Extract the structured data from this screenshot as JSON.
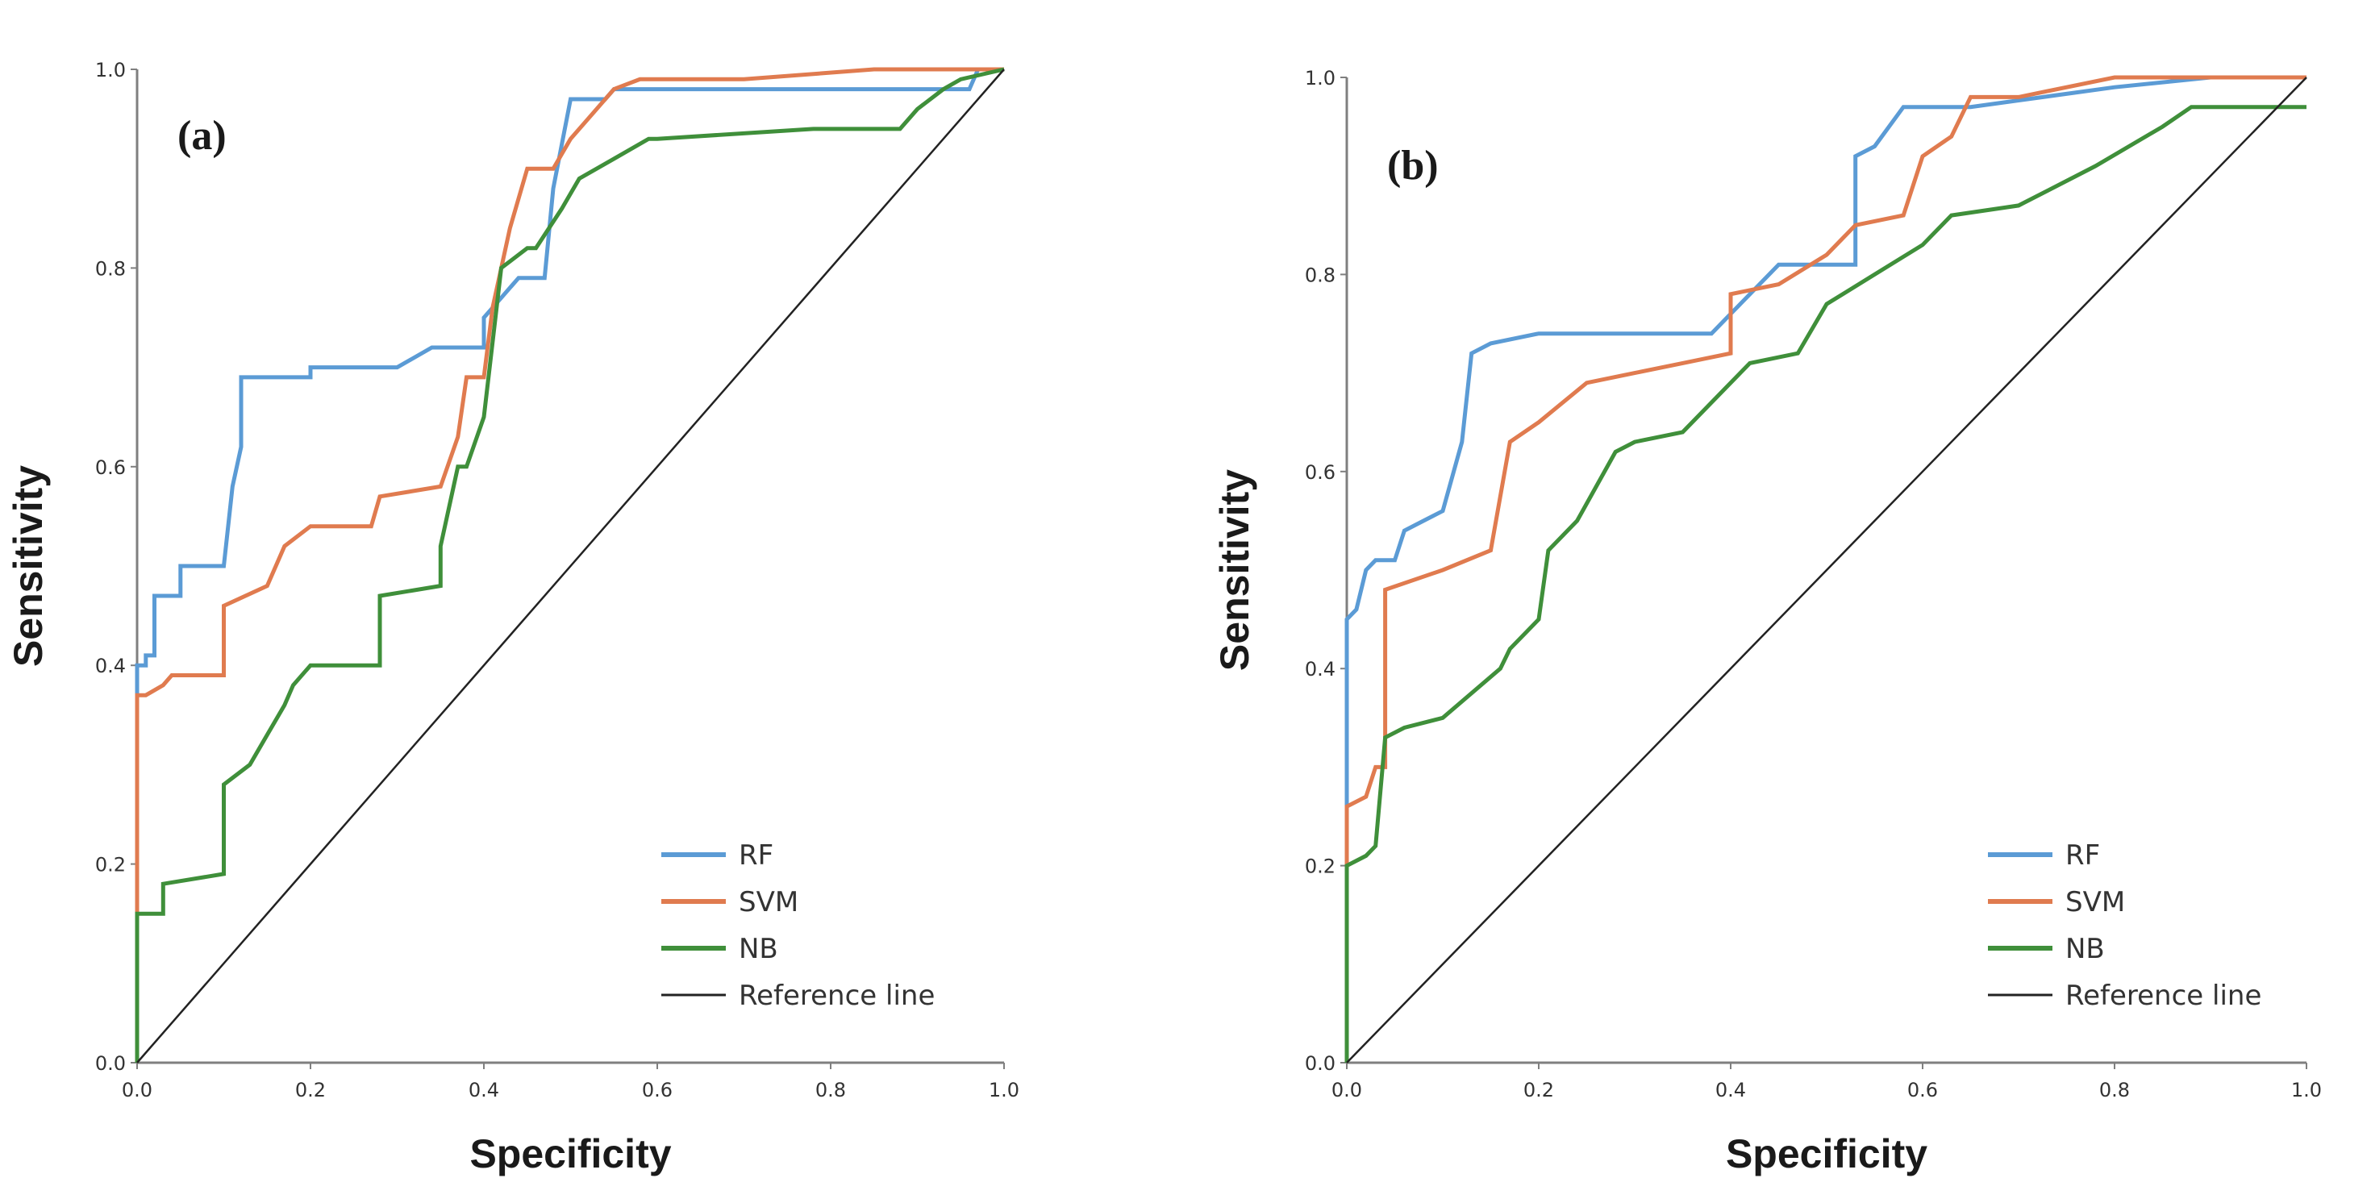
{
  "colors": {
    "RF": "#5b9bd5",
    "SVM": "#e07b4f",
    "NB": "#3f8f3a",
    "Reference line": "#222222"
  },
  "chart_data": [
    {
      "type": "line",
      "panel_label": "(a)",
      "xlabel": "Specificity",
      "ylabel": "Sensitivity",
      "xlim": [
        0,
        1
      ],
      "ylim": [
        0,
        1
      ],
      "xticks": [
        "0.0",
        "0.2",
        "0.4",
        "0.6",
        "0.8",
        "1.0"
      ],
      "yticks": [
        "0.0",
        "0.2",
        "0.4",
        "0.6",
        "0.8",
        "1.0"
      ],
      "grid": false,
      "legend_position": "bottom-right",
      "series": [
        {
          "name": "RF",
          "x": [
            0.0,
            0.0,
            0.01,
            0.01,
            0.02,
            0.02,
            0.05,
            0.05,
            0.1,
            0.11,
            0.12,
            0.12,
            0.14,
            0.2,
            0.2,
            0.3,
            0.34,
            0.4,
            0.4,
            0.42,
            0.44,
            0.47,
            0.48,
            0.5,
            0.51,
            0.54,
            0.55,
            0.96,
            0.97,
            1.0
          ],
          "y": [
            0.0,
            0.4,
            0.4,
            0.41,
            0.41,
            0.47,
            0.47,
            0.5,
            0.5,
            0.58,
            0.62,
            0.69,
            0.69,
            0.69,
            0.7,
            0.7,
            0.72,
            0.72,
            0.75,
            0.77,
            0.79,
            0.79,
            0.88,
            0.97,
            0.97,
            0.97,
            0.98,
            0.98,
            1.0,
            1.0
          ]
        },
        {
          "name": "SVM",
          "x": [
            0.0,
            0.0,
            0.01,
            0.03,
            0.04,
            0.1,
            0.1,
            0.15,
            0.17,
            0.2,
            0.27,
            0.28,
            0.35,
            0.37,
            0.38,
            0.4,
            0.41,
            0.43,
            0.45,
            0.48,
            0.5,
            0.52,
            0.55,
            0.58,
            0.7,
            0.85,
            1.0
          ],
          "y": [
            0.0,
            0.37,
            0.37,
            0.38,
            0.39,
            0.39,
            0.46,
            0.48,
            0.52,
            0.54,
            0.54,
            0.57,
            0.58,
            0.63,
            0.69,
            0.69,
            0.76,
            0.84,
            0.9,
            0.9,
            0.93,
            0.95,
            0.98,
            0.99,
            0.99,
            1.0,
            1.0
          ]
        },
        {
          "name": "NB",
          "x": [
            0.0,
            0.0,
            0.03,
            0.03,
            0.1,
            0.1,
            0.13,
            0.15,
            0.17,
            0.18,
            0.2,
            0.28,
            0.28,
            0.35,
            0.35,
            0.37,
            0.38,
            0.4,
            0.42,
            0.45,
            0.46,
            0.49,
            0.51,
            0.55,
            0.59,
            0.6,
            0.78,
            0.88,
            0.9,
            0.93,
            0.95,
            1.0
          ],
          "y": [
            0.0,
            0.15,
            0.15,
            0.18,
            0.19,
            0.28,
            0.3,
            0.33,
            0.36,
            0.38,
            0.4,
            0.4,
            0.47,
            0.48,
            0.52,
            0.6,
            0.6,
            0.65,
            0.8,
            0.82,
            0.82,
            0.86,
            0.89,
            0.91,
            0.93,
            0.93,
            0.94,
            0.94,
            0.96,
            0.98,
            0.99,
            1.0
          ]
        },
        {
          "name": "Reference line",
          "x": [
            0.0,
            1.0
          ],
          "y": [
            0.0,
            1.0
          ]
        }
      ]
    },
    {
      "type": "line",
      "panel_label": "(b)",
      "xlabel": "Specificity",
      "ylabel": "Sensitivity",
      "xlim": [
        0,
        1
      ],
      "ylim": [
        0,
        1
      ],
      "xticks": [
        "0.0",
        "0.2",
        "0.4",
        "0.6",
        "0.8",
        "1.0"
      ],
      "yticks": [
        "0.0",
        "0.2",
        "0.4",
        "0.6",
        "0.8",
        "1.0"
      ],
      "grid": false,
      "legend_position": "bottom-right",
      "series": [
        {
          "name": "RF",
          "x": [
            0.0,
            0.0,
            0.01,
            0.02,
            0.03,
            0.05,
            0.06,
            0.08,
            0.1,
            0.12,
            0.13,
            0.15,
            0.2,
            0.38,
            0.4,
            0.45,
            0.53,
            0.53,
            0.55,
            0.58,
            0.65,
            0.8,
            0.9,
            1.0
          ],
          "y": [
            0.0,
            0.45,
            0.46,
            0.5,
            0.51,
            0.51,
            0.54,
            0.55,
            0.56,
            0.63,
            0.72,
            0.73,
            0.74,
            0.74,
            0.76,
            0.81,
            0.81,
            0.92,
            0.93,
            0.97,
            0.97,
            0.99,
            1.0,
            1.0
          ]
        },
        {
          "name": "SVM",
          "x": [
            0.0,
            0.0,
            0.02,
            0.03,
            0.04,
            0.04,
            0.1,
            0.15,
            0.17,
            0.2,
            0.25,
            0.3,
            0.35,
            0.4,
            0.4,
            0.45,
            0.5,
            0.53,
            0.58,
            0.6,
            0.63,
            0.65,
            0.7,
            0.8,
            1.0
          ],
          "y": [
            0.0,
            0.26,
            0.27,
            0.3,
            0.3,
            0.48,
            0.5,
            0.52,
            0.63,
            0.65,
            0.69,
            0.7,
            0.71,
            0.72,
            0.78,
            0.79,
            0.82,
            0.85,
            0.86,
            0.92,
            0.94,
            0.98,
            0.98,
            1.0,
            1.0
          ]
        },
        {
          "name": "NB",
          "x": [
            0.0,
            0.0,
            0.02,
            0.03,
            0.04,
            0.06,
            0.1,
            0.16,
            0.17,
            0.2,
            0.21,
            0.24,
            0.28,
            0.3,
            0.35,
            0.39,
            0.42,
            0.47,
            0.5,
            0.55,
            0.6,
            0.63,
            0.7,
            0.78,
            0.85,
            0.88,
            1.0
          ],
          "y": [
            0.0,
            0.2,
            0.21,
            0.22,
            0.33,
            0.34,
            0.35,
            0.4,
            0.42,
            0.45,
            0.52,
            0.55,
            0.62,
            0.63,
            0.64,
            0.68,
            0.71,
            0.72,
            0.77,
            0.8,
            0.83,
            0.86,
            0.87,
            0.91,
            0.95,
            0.97,
            0.97
          ]
        },
        {
          "name": "Reference line",
          "x": [
            0.0,
            1.0
          ],
          "y": [
            0.0,
            1.0
          ]
        }
      ]
    }
  ]
}
